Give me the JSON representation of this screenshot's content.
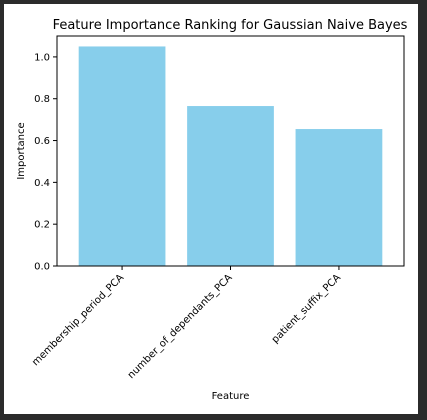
{
  "colors": {
    "bar": "#87ceeb",
    "axis": "#000000",
    "background": "#ffffff",
    "frame": "#2b2b2b"
  },
  "chart_data": {
    "type": "bar",
    "title": "Feature Importance Ranking for Gaussian Naive Bayes",
    "xlabel": "Feature",
    "ylabel": "Importance",
    "categories": [
      "membership_period_PCA",
      "number_of_dependants_PCA",
      "patient_suffix_PCA"
    ],
    "values": [
      1.05,
      0.765,
      0.655
    ],
    "ylim": [
      0,
      1.1
    ],
    "yticks": [
      "0.0",
      "0.2",
      "0.4",
      "0.6",
      "0.8",
      "1.0"
    ],
    "grid": false,
    "legend": "none"
  }
}
